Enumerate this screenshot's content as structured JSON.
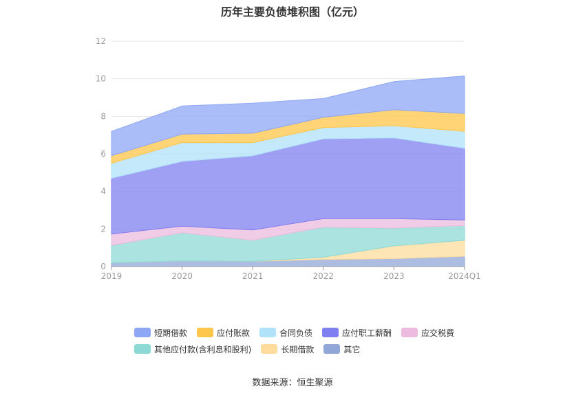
{
  "chart_data": {
    "type": "area",
    "stacked": true,
    "title": "历年主要负债堆积图（亿元）",
    "categories": [
      "2019",
      "2020",
      "2021",
      "2022",
      "2023",
      "2024Q1"
    ],
    "ylim": [
      0,
      12
    ],
    "yticks": [
      "0",
      "2",
      "4",
      "6",
      "8",
      "10",
      "12"
    ],
    "grid": true,
    "legend_position": "bottom",
    "series": [
      {
        "name": "其它",
        "color": "#91a7d8",
        "values": [
          0.2,
          0.3,
          0.28,
          0.38,
          0.42,
          0.55
        ]
      },
      {
        "name": "长期借款",
        "color": "#fedc9e",
        "values": [
          0,
          0,
          0,
          0.12,
          0.68,
          0.85
        ]
      },
      {
        "name": "其他应付款(含利息和股利)",
        "color": "#8dd9d6",
        "values": [
          0.93,
          1.5,
          1.12,
          1.6,
          0.95,
          0.78
        ]
      },
      {
        "name": "应交税费",
        "color": "#ecbbdf",
        "values": [
          0.6,
          0.35,
          0.55,
          0.45,
          0.5,
          0.3
        ]
      },
      {
        "name": "应付职工薪酬",
        "color": "#7f7ff0",
        "values": [
          2.97,
          3.45,
          3.95,
          4.25,
          4.3,
          3.82
        ]
      },
      {
        "name": "合同负债",
        "color": "#b0e2fa",
        "values": [
          0.8,
          1.0,
          0.7,
          0.6,
          0.65,
          0.9
        ]
      },
      {
        "name": "应付账款",
        "color": "#fec64a",
        "values": [
          0.4,
          0.45,
          0.5,
          0.55,
          0.85,
          0.95
        ]
      },
      {
        "name": "短期借款",
        "color": "#8ea7f5",
        "values": [
          1.3,
          1.5,
          1.6,
          1.0,
          1.5,
          2.0
        ]
      }
    ],
    "legend_rows": [
      [
        "短期借款",
        "应付账款",
        "合同负债",
        "应付职工薪酬",
        "应交税费"
      ],
      [
        "其他应付款(含利息和股利)",
        "长期借款",
        "其它"
      ]
    ]
  },
  "source_note": "数据来源：恒生聚源"
}
